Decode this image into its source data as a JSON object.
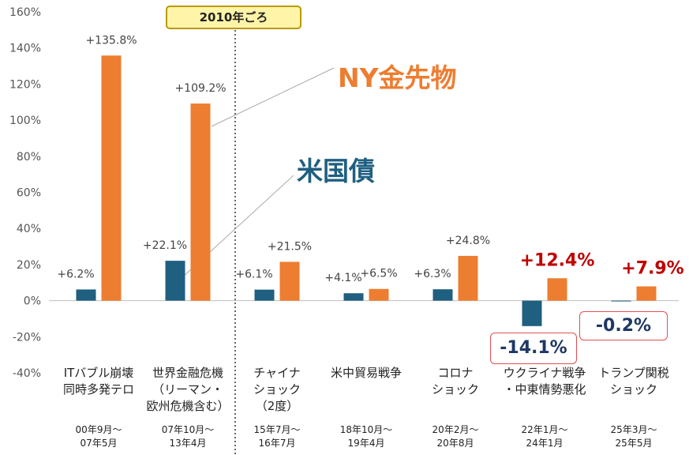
{
  "chart_data": {
    "type": "bar",
    "ylim": [
      -40,
      160
    ],
    "yticks": [
      "160%",
      "140%",
      "120%",
      "100%",
      "80%",
      "60%",
      "40%",
      "20%",
      "0%",
      "-20%",
      "-40%"
    ],
    "categories": [
      {
        "lines": [
          "ITバブル崩壊",
          "同時多発テロ"
        ],
        "period": [
          "00年9月～",
          "07年5月"
        ]
      },
      {
        "lines": [
          "世界金融危機",
          "（リーマン・",
          "欧州危機含む）"
        ],
        "period": [
          "07年10月～",
          "13年4月"
        ]
      },
      {
        "lines": [
          "チャイナ",
          "ショック",
          "（2度）"
        ],
        "period": [
          "15年7月～",
          "16年7月"
        ]
      },
      {
        "lines": [
          "米中貿易戦争"
        ],
        "period": [
          "18年10月～",
          "19年4月"
        ]
      },
      {
        "lines": [
          "コロナ",
          "ショック"
        ],
        "period": [
          "20年2月～",
          "20年8月"
        ]
      },
      {
        "lines": [
          "ウクライナ戦争",
          "・中東情勢悪化"
        ],
        "period": [
          "22年1月～",
          "24年1月"
        ]
      },
      {
        "lines": [
          "トランプ関税",
          "ショック"
        ],
        "period": [
          "25年3月～",
          "25年5月"
        ]
      }
    ],
    "series": [
      {
        "name": "米国債",
        "color": "#1f5f80",
        "values": [
          6.2,
          22.1,
          6.1,
          4.1,
          6.3,
          -14.1,
          -0.2
        ],
        "labels": [
          "+6.2%",
          "+22.1%",
          "+6.1%",
          "+4.1%",
          "+6.3%",
          "-14.1%",
          "-0.2%"
        ]
      },
      {
        "name": "NY金先物",
        "color": "#ed7d31",
        "values": [
          135.8,
          109.2,
          21.5,
          6.5,
          24.8,
          12.4,
          7.9
        ],
        "labels": [
          "+135.8%",
          "+109.2%",
          "+21.5%",
          "+6.5%",
          "+24.8%",
          "+12.4%",
          "+7.9%"
        ]
      }
    ],
    "annotation": "2010年ごろ",
    "highlight_color": "#c00000"
  }
}
